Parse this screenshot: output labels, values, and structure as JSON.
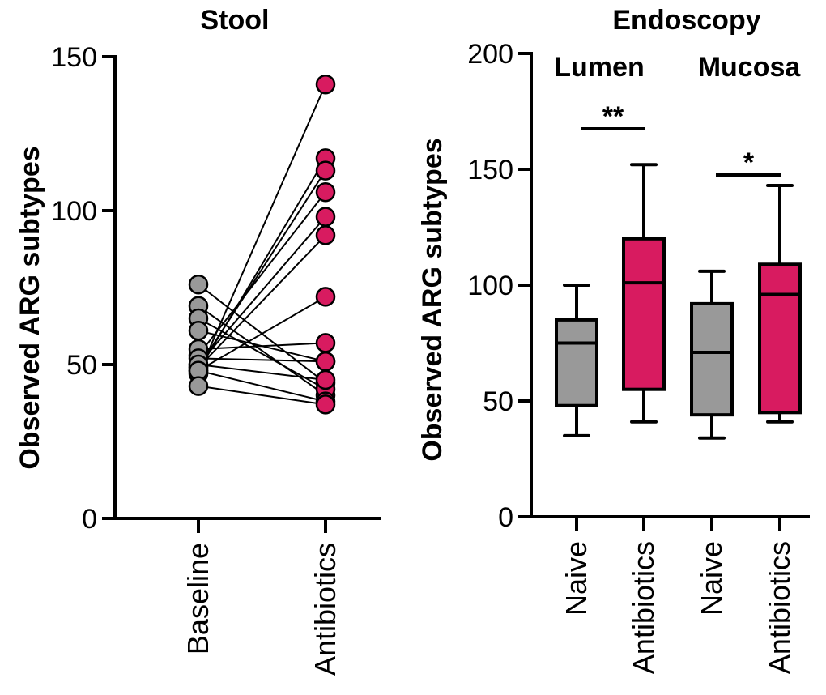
{
  "colors": {
    "baseline": "#999999",
    "antibiotics": "#d81b60",
    "line": "#000000"
  },
  "chart_data": [
    {
      "type": "line",
      "title": "Stool",
      "ylabel": "Observed ARG subtypes",
      "ylim": [
        0,
        150
      ],
      "yticks": [
        "0",
        "50",
        "100",
        "150"
      ],
      "categories": [
        "Baseline",
        "Antibiotics"
      ],
      "pairs": [
        [
          47,
          141
        ],
        [
          48,
          117
        ],
        [
          49,
          113
        ],
        [
          53,
          106
        ],
        [
          50,
          98
        ],
        [
          49,
          92
        ],
        [
          48,
          72
        ],
        [
          76,
          44
        ],
        [
          69,
          40
        ],
        [
          65,
          42
        ],
        [
          61,
          51
        ],
        [
          55,
          57
        ],
        [
          52,
          51
        ],
        [
          50,
          45
        ],
        [
          48,
          38
        ],
        [
          43,
          37
        ]
      ]
    },
    {
      "type": "box",
      "title": "Endoscopy",
      "ylabel": "Observed ARG subtypes",
      "ylim": [
        0,
        200
      ],
      "yticks": [
        "0",
        "50",
        "100",
        "150",
        "200"
      ],
      "groups": [
        {
          "label": "Lumen"
        },
        {
          "label": "Mucosa"
        }
      ],
      "categories": [
        "Naive",
        "Antibiotics",
        "Naive",
        "Antibiotics"
      ],
      "boxes": [
        {
          "min": 35,
          "q1": 48,
          "median": 75,
          "q3": 85,
          "max": 100
        },
        {
          "min": 41,
          "q1": 55,
          "median": 101,
          "q3": 120,
          "max": 152
        },
        {
          "min": 34,
          "q1": 44,
          "median": 71,
          "q3": 92,
          "max": 106
        },
        {
          "min": 41,
          "q1": 45,
          "median": 96,
          "q3": 109,
          "max": 143
        }
      ],
      "significance": [
        {
          "label": "**",
          "from": 0,
          "to": 1
        },
        {
          "label": "*",
          "from": 2,
          "to": 3
        }
      ]
    }
  ]
}
